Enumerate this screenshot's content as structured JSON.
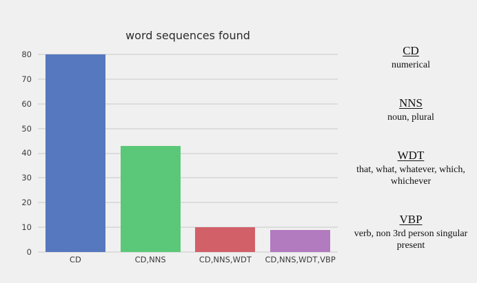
{
  "chart_data": {
    "type": "bar",
    "title": "word sequences found",
    "categories": [
      "CD",
      "CD,NNS",
      "CD,NNS,WDT",
      "CD,NNS,WDT,VBP"
    ],
    "values": [
      80,
      43,
      10,
      9
    ],
    "bar_colors": [
      "#5578be",
      "#5ac878",
      "#d26068",
      "#b27abf"
    ],
    "xlabel": "",
    "ylabel": "",
    "ylim": [
      0,
      82.5
    ],
    "yticks": [
      0,
      10,
      20,
      30,
      40,
      50,
      60,
      70,
      80
    ],
    "grid": "horizontal-only",
    "legend_position": "right-of-plot",
    "background_color": "#f0f0f0",
    "gridline_color": "#dcdcdc"
  },
  "legend": {
    "entries": [
      {
        "term": "CD",
        "definition": "numerical"
      },
      {
        "term": "NNS",
        "definition": "noun, plural"
      },
      {
        "term": "WDT",
        "definition": "that, what, whatever, which, whichever"
      },
      {
        "term": "VBP",
        "definition": "verb, non 3rd person singular present"
      }
    ]
  }
}
